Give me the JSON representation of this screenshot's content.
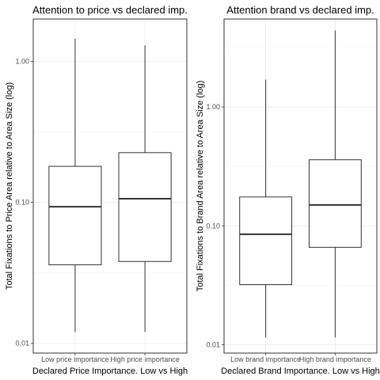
{
  "chart_data": [
    {
      "type": "boxplot",
      "title": "Attention to price vs declared imp.",
      "xlabel": "Declared Price Importance. Low vs High",
      "ylabel": "Total Fixations to Price Area relative to Area Size (log)",
      "yscale": "log",
      "ylim": [
        0.0085,
        2.0
      ],
      "yticks": [
        {
          "value": 0.01,
          "label": "0.01"
        },
        {
          "value": 0.1,
          "label": "0.10"
        },
        {
          "value": 1.0,
          "label": "1.00"
        }
      ],
      "grid": true,
      "categories": [
        "Low price importance",
        "High price importance"
      ],
      "boxes": [
        {
          "category": "Low price importance",
          "whisker_low": 0.012,
          "q1": 0.036,
          "median": 0.093,
          "q3": 0.18,
          "whisker_high": 1.45
        },
        {
          "category": "High price importance",
          "whisker_low": 0.012,
          "q1": 0.038,
          "median": 0.106,
          "q3": 0.225,
          "whisker_high": 1.3
        }
      ]
    },
    {
      "type": "boxplot",
      "title": "Attention brand vs declared imp.",
      "xlabel": "Declared Brand Importance. Low vs High",
      "ylabel": "Total Fixations to Brand Area relative to Area Size (log)",
      "yscale": "log",
      "ylim": [
        0.0085,
        5.5
      ],
      "yticks": [
        {
          "value": 0.01,
          "label": "0.01"
        },
        {
          "value": 0.1,
          "label": "0.10"
        },
        {
          "value": 1.0,
          "label": "1.00"
        }
      ],
      "grid": true,
      "categories": [
        "Low brand importance",
        "High brand importance"
      ],
      "boxes": [
        {
          "category": "Low brand importance",
          "whisker_low": 0.0115,
          "q1": 0.032,
          "median": 0.085,
          "q3": 0.175,
          "whisker_high": 1.7
        },
        {
          "category": "High brand importance",
          "whisker_low": 0.0115,
          "q1": 0.066,
          "median": 0.15,
          "q3": 0.36,
          "whisker_high": 4.4
        }
      ]
    }
  ]
}
